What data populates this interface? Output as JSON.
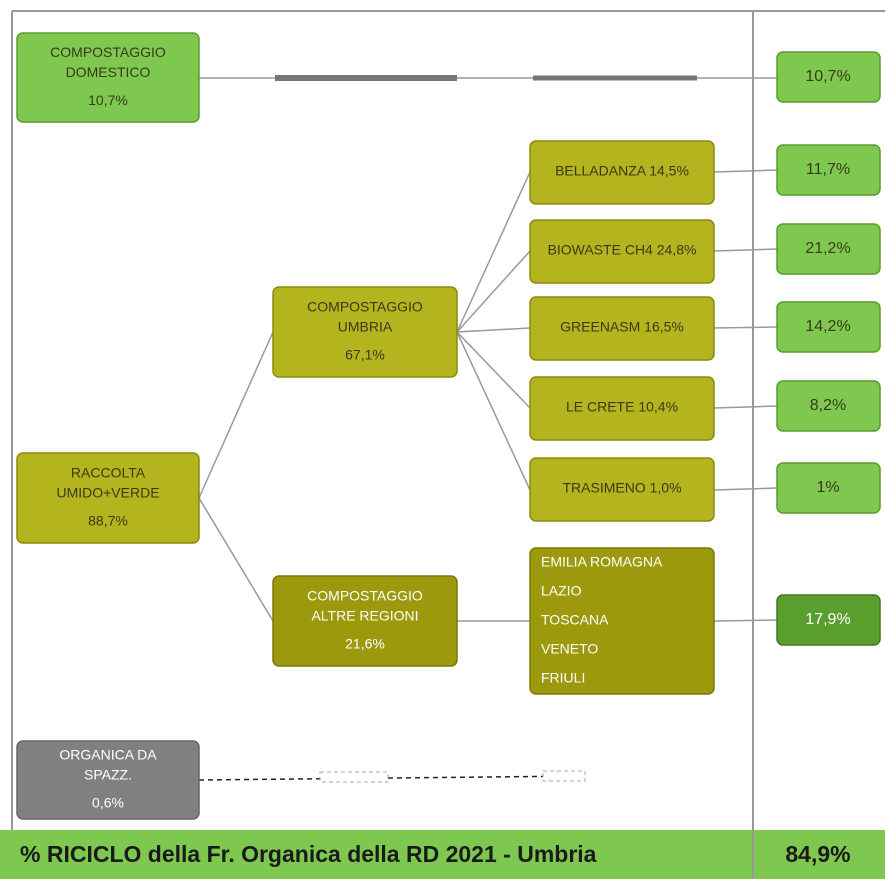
{
  "nodes": [
    {
      "lines": [
        "COMPOSTAGGIO",
        "DOMESTICO",
        "10,7%"
      ]
    },
    {
      "lines": [
        "RACCOLTA",
        "UMIDO+VERDE",
        "88,7%"
      ]
    },
    {
      "lines": [
        "COMPOSTAGGIO",
        "UMBRIA",
        "67,1%"
      ]
    },
    {
      "lines": [
        "COMPOSTAGGIO",
        "ALTRE REGIONI",
        "21,6%"
      ]
    },
    {
      "lines": [
        "ORGANICA DA",
        "SPAZZ.",
        "0,6%"
      ]
    }
  ],
  "plants": [
    "BELLADANZA 14,5%",
    "BIOWASTE CH4 24,8%",
    "GREENASM 16,5%",
    "LE CRETE 10,4%",
    "TRASIMENO 1,0%"
  ],
  "regions": [
    "EMILIA ROMAGNA",
    "LAZIO",
    "TOSCANA",
    "VENETO",
    "FRIULI"
  ],
  "results": [
    "10,7%",
    "11,7%",
    "21,2%",
    "14,2%",
    "8,2%",
    "1%",
    "17,9%"
  ],
  "footer": {
    "title": "% RICICLO della Fr. Organica della RD 2021 - Umbria",
    "value": "84,9%"
  }
}
